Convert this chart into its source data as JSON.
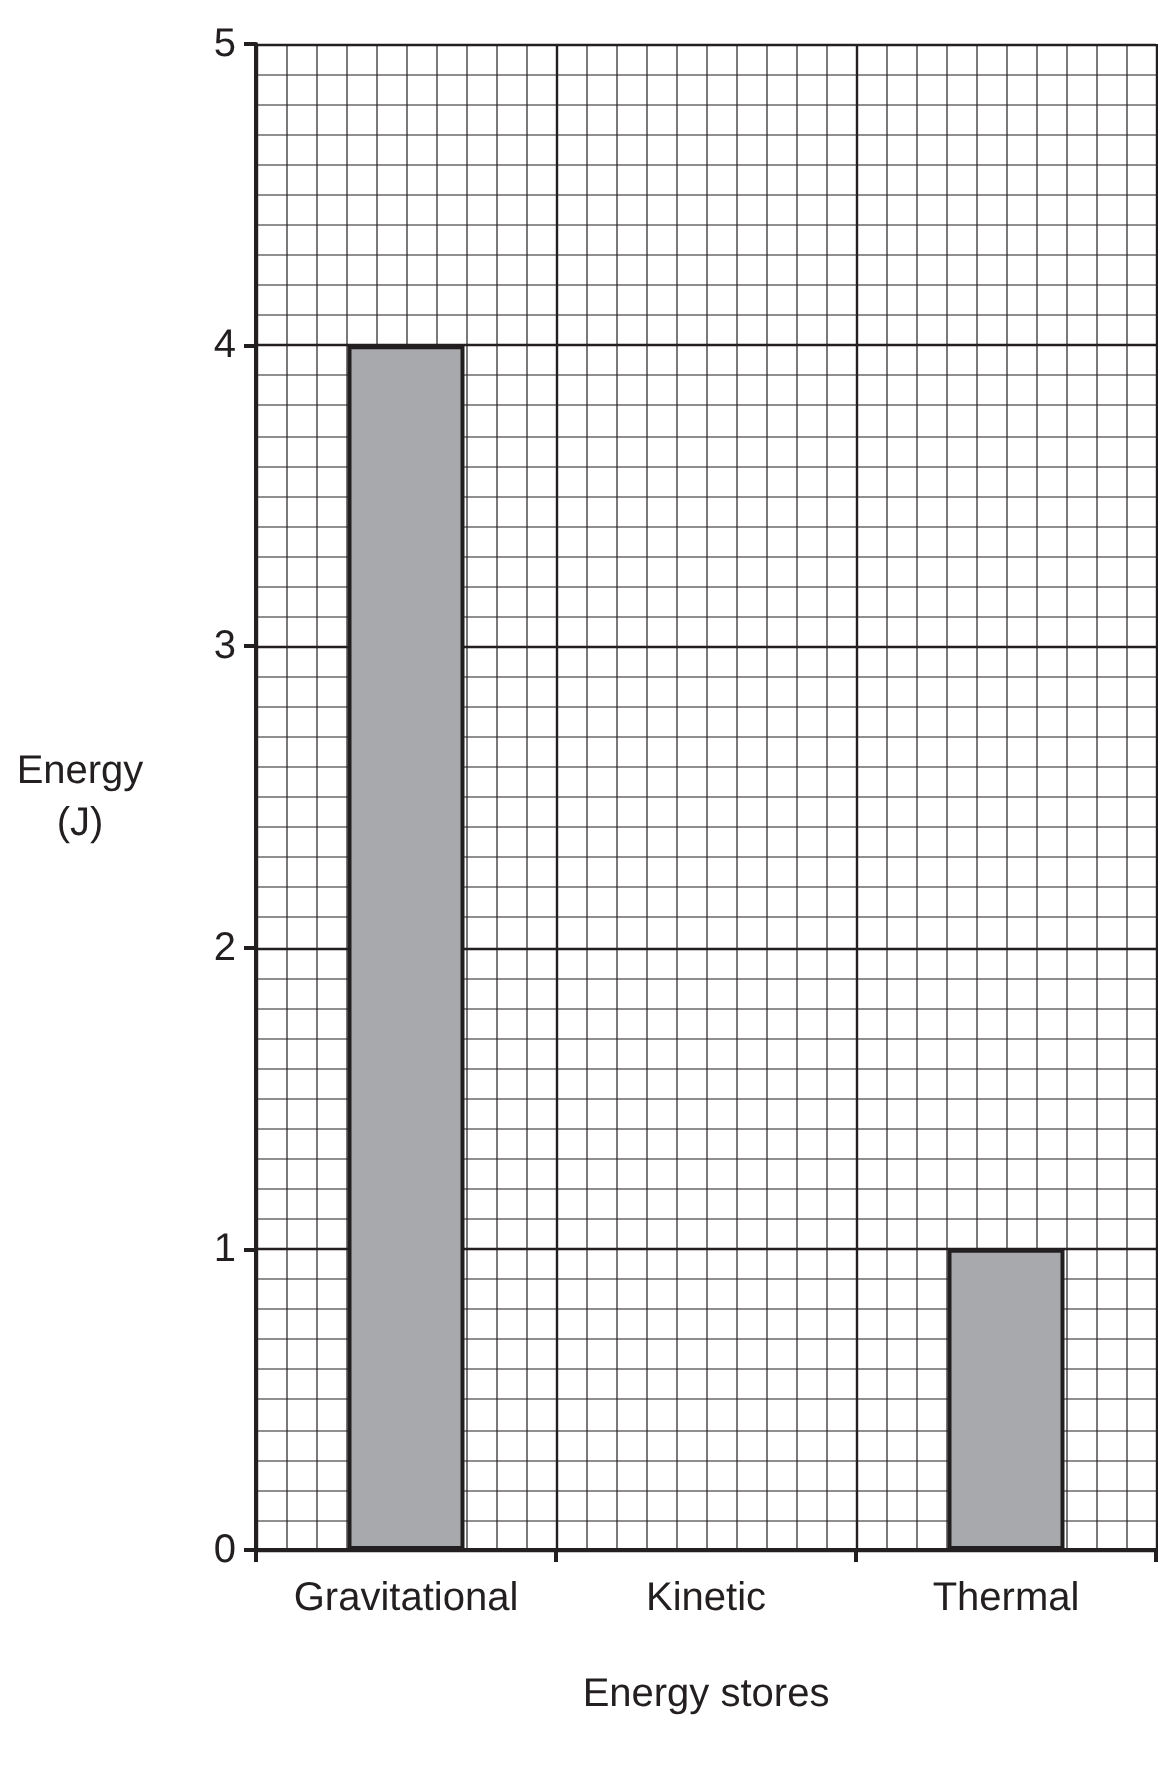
{
  "chart_data": {
    "type": "bar",
    "categories": [
      "Gravitational",
      "Kinetic",
      "Thermal"
    ],
    "values": [
      4,
      0,
      1
    ],
    "color": "#a7a9ac",
    "ylim": [
      0,
      5
    ],
    "yticks": [
      0,
      1,
      2,
      3,
      4,
      5
    ],
    "xlabel": "Energy stores",
    "ylabel": "Energy (J)",
    "grid": true
  }
}
